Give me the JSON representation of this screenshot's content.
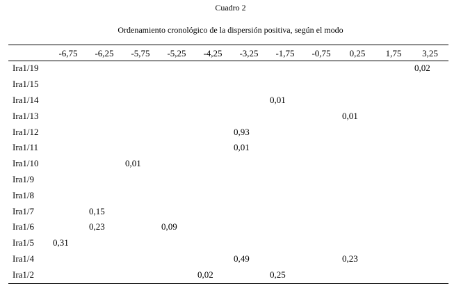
{
  "title": "Cuadro 2",
  "subtitle": "Ordenamiento cronológico de la dispersión positiva, según el modo",
  "table": {
    "corner": "",
    "columns": [
      "-6,75",
      "-6,25",
      "-5,75",
      "-5,25",
      "-4,25",
      "-3,25",
      "-1,75",
      "-0,75",
      "0,25",
      "1,75",
      "3,25"
    ],
    "rows": [
      {
        "label": "Ira1/19",
        "cells": [
          "",
          "",
          "",
          "",
          "",
          "",
          "",
          "",
          "",
          "",
          "0,02"
        ]
      },
      {
        "label": "Ira1/15",
        "cells": [
          "",
          "",
          "",
          "",
          "",
          "",
          "",
          "",
          "",
          "",
          ""
        ]
      },
      {
        "label": "Ira1/14",
        "cells": [
          "",
          "",
          "",
          "",
          "",
          "",
          "0,01",
          "",
          "",
          "",
          ""
        ]
      },
      {
        "label": "Ira1/13",
        "cells": [
          "",
          "",
          "",
          "",
          "",
          "",
          "",
          "",
          "0,01",
          "",
          ""
        ]
      },
      {
        "label": "Ira1/12",
        "cells": [
          "",
          "",
          "",
          "",
          "",
          "0,93",
          "",
          "",
          "",
          "",
          ""
        ]
      },
      {
        "label": "Ira1/11",
        "cells": [
          "",
          "",
          "",
          "",
          "",
          "0,01",
          "",
          "",
          "",
          "",
          ""
        ]
      },
      {
        "label": "Ira1/10",
        "cells": [
          "",
          "",
          "0,01",
          "",
          "",
          "",
          "",
          "",
          "",
          "",
          ""
        ]
      },
      {
        "label": "Ira1/9",
        "cells": [
          "",
          "",
          "",
          "",
          "",
          "",
          "",
          "",
          "",
          "",
          ""
        ]
      },
      {
        "label": "Ira1/8",
        "cells": [
          "",
          "",
          "",
          "",
          "",
          "",
          "",
          "",
          "",
          "",
          ""
        ]
      },
      {
        "label": "Ira1/7",
        "cells": [
          "",
          "0,15",
          "",
          "",
          "",
          "",
          "",
          "",
          "",
          "",
          ""
        ]
      },
      {
        "label": "Ira1/6",
        "cells": [
          "",
          "0,23",
          "",
          "0,09",
          "",
          "",
          "",
          "",
          "",
          "",
          ""
        ]
      },
      {
        "label": "Ira1/5",
        "cells": [
          "0,31",
          "",
          "",
          "",
          "",
          "",
          "",
          "",
          "",
          "",
          ""
        ]
      },
      {
        "label": "Ira1/4",
        "cells": [
          "",
          "",
          "",
          "",
          "",
          "0,49",
          "",
          "",
          "0,23",
          "",
          ""
        ]
      },
      {
        "label": "Ira1/2",
        "cells": [
          "",
          "",
          "",
          "",
          "0,02",
          "",
          "0,25",
          "",
          "",
          "",
          ""
        ]
      }
    ]
  }
}
